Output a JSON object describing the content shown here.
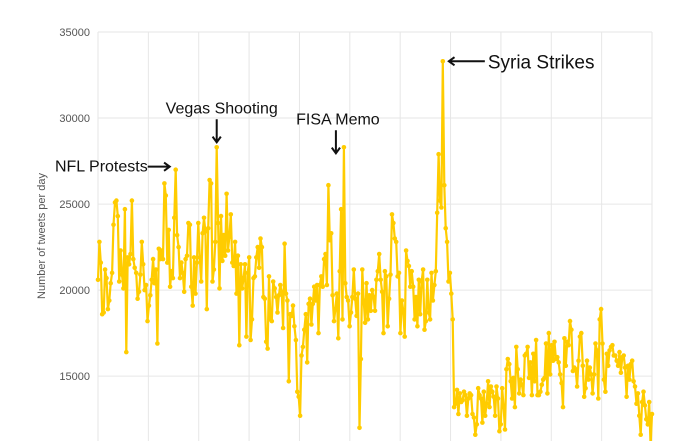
{
  "chart_data": {
    "type": "line",
    "title": "",
    "xlabel": "",
    "ylabel": "Number of tweets per day",
    "ylim": [
      11000,
      35000
    ],
    "yticks": [
      15000,
      20000,
      25000,
      30000,
      35000
    ],
    "ytick_labels": [
      "15000",
      "20000",
      "25000",
      "30000",
      "35000"
    ],
    "grid": true,
    "line_color": "#FFCC00",
    "series": [
      {
        "values": [
          20600,
          22800,
          21600,
          18600,
          18700,
          21200,
          20700,
          18900,
          19400,
          20400,
          21000,
          23800,
          25100,
          25200,
          24300,
          20500,
          22300,
          20900,
          20100,
          24700,
          16400,
          21900,
          21500,
          22100,
          25200,
          21800,
          21300,
          21000,
          19500,
          19900,
          20900,
          22800,
          21500,
          20000,
          20300,
          18200,
          19100,
          19700,
          20600,
          21800,
          20400,
          21200,
          16900,
          22400,
          21800,
          22300,
          21800,
          26200,
          25500,
          21600,
          23500,
          20200,
          21100,
          20700,
          24200,
          27000,
          23200,
          22500,
          20700,
          21600,
          21000,
          19900,
          21800,
          22000,
          23900,
          23800,
          20200,
          19100,
          21900,
          19800,
          21600,
          23900,
          21900,
          20500,
          23300,
          24200,
          23400,
          18900,
          23600,
          26400,
          26200,
          20500,
          21200,
          22800,
          28300,
          23900,
          20100,
          24300,
          21700,
          23200,
          22000,
          25600,
          22300,
          23100,
          24400,
          21600,
          21400,
          22800,
          19800,
          22000,
          16800,
          21500,
          20100,
          20700,
          21500,
          17300,
          21000,
          21900,
          17100,
          18300,
          20700,
          20800,
          21900,
          22500,
          21300,
          23000,
          22500,
          19600,
          19500,
          17000,
          16600,
          20800,
          18300,
          18200,
          20500,
          20100,
          19600,
          18700,
          19700,
          20300,
          19900,
          17800,
          22700,
          19800,
          19400,
          14700,
          18600,
          18500,
          19100,
          17900,
          17100,
          14100,
          13800,
          12700,
          16200,
          16700,
          17700,
          18600,
          15800,
          19200,
          19500,
          18000,
          19200,
          20200,
          19400,
          20300,
          17500,
          20300,
          20800,
          20200,
          21800,
          22100,
          20300,
          26100,
          22900,
          23300,
          19700,
          18200,
          18900,
          19800,
          17200,
          21100,
          24700,
          18300,
          28300,
          20400,
          19600,
          19400,
          17900,
          18700,
          19600,
          21200,
          19500,
          18500,
          19800,
          12000,
          16000,
          21200,
          19400,
          18100,
          20400,
          18300,
          19700,
          18800,
          20000,
          19600,
          18800,
          20600,
          21100,
          22100,
          20600,
          19900,
          17500,
          21100,
          20800,
          17900,
          19500,
          20900,
          24400,
          23900,
          23000,
          22800,
          20800,
          21000,
          17500,
          19400,
          18800,
          17300,
          22300,
          21700,
          21400,
          20200,
          21100,
          20200,
          18300,
          19600,
          17900,
          20600,
          18600,
          20500,
          21200,
          17700,
          18200,
          20600,
          18700,
          18300,
          21000,
          19400,
          20300,
          21100,
          24500,
          27900,
          25200,
          24800,
          33300,
          26100,
          23600,
          22800,
          20500,
          21000,
          19800,
          18300,
          13200,
          13400,
          14200,
          12800,
          14000,
          13500,
          13600,
          14100,
          13900,
          12700,
          13700,
          14000,
          13900,
          12800,
          12600,
          11600,
          12200,
          14300,
          13900,
          13700,
          12300,
          14100,
          12700,
          13400,
          14700,
          13200,
          14400,
          14100,
          13800,
          12700,
          14400,
          13700,
          11800,
          12200,
          14300,
          13200,
          11900,
          15400,
          16000,
          15700,
          14700,
          13700,
          14900,
          13200,
          16700,
          15400,
          14000,
          14800,
          14500,
          13900,
          16200,
          16300,
          16700,
          14900,
          15800,
          13900,
          16300,
          14700,
          17100,
          13900,
          13900,
          14100,
          14500,
          14800,
          14900,
          16900,
          14000,
          17500,
          15100,
          16800,
          15900,
          17000,
          16000,
          16100,
          15800,
          15100,
          14600,
          13200,
          17200,
          15600,
          17000,
          16800,
          18200,
          17700,
          15300,
          15500,
          15400,
          14400,
          15900,
          17300,
          17500,
          15600,
          13800,
          14300,
          15900,
          14800,
          15500,
          15100,
          14000,
          15100,
          16900,
          16500,
          13700,
          18300,
          18900,
          16900,
          14800,
          14100,
          16300,
          15600,
          16500,
          16700,
          16800,
          16200,
          16200,
          15900,
          15600,
          16400,
          15200,
          16100,
          16200,
          15500,
          13800,
          15600,
          14800,
          15700,
          15900,
          14700,
          14400,
          13400,
          14000,
          12700,
          11600,
          13500,
          14100,
          13300,
          12500,
          12200,
          13500,
          10900,
          12800
        ]
      }
    ],
    "annotations": [
      {
        "text": "NFL Protests",
        "value": 27000
      },
      {
        "text": "Vegas Shooting",
        "value": 28300
      },
      {
        "text": "FISA Memo",
        "value": 28300
      },
      {
        "text": "Syria Strikes",
        "value": 33300
      }
    ]
  }
}
